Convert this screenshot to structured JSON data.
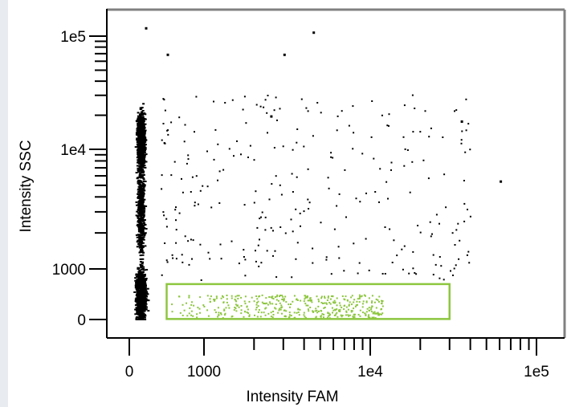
{
  "chart_data": {
    "type": "scatter",
    "title": "",
    "xlabel": "Intensity FAM",
    "ylabel": "Intensity SSC",
    "x_scale": "biexponential",
    "y_scale": "biexponential",
    "xlim": [
      -100,
      130000
    ],
    "ylim": [
      -100,
      150000
    ],
    "x_tick_labels": [
      {
        "value": 0,
        "label": "0"
      },
      {
        "value": 1000,
        "label": "1000"
      },
      {
        "value": 10000,
        "label": "1e4"
      },
      {
        "value": 100000,
        "label": "1e5"
      }
    ],
    "y_tick_labels": [
      {
        "value": 0,
        "label": "0"
      },
      {
        "value": 1000,
        "label": "1000"
      },
      {
        "value": 10000,
        "label": "1e4"
      },
      {
        "value": 100000,
        "label": "1e5"
      }
    ],
    "x_minor_ticks": [
      2000,
      3000,
      4000,
      5000,
      6000,
      7000,
      8000,
      9000,
      20000,
      30000,
      40000,
      50000,
      60000,
      70000,
      80000,
      90000
    ],
    "y_minor_ticks": [
      2000,
      3000,
      4000,
      5000,
      6000,
      7000,
      8000,
      9000,
      20000,
      30000,
      40000,
      50000,
      60000,
      70000,
      80000,
      90000
    ],
    "gate": {
      "x_range": [
        500,
        30000
      ],
      "y_range": [
        10,
        700
      ],
      "color": "#8dc63f"
    },
    "main_population": {
      "color": "#000000",
      "x_range": [
        -20,
        180
      ],
      "y_range": [
        0,
        60000
      ],
      "approx_count": 2500
    },
    "scattered_events": {
      "color": "#000000",
      "approx_count": 330
    },
    "gated_events": {
      "color": "#8dc63f",
      "x_range": [
        550,
        12000
      ],
      "y_range": [
        40,
        500
      ],
      "approx_count": 420
    },
    "outlier_points": [
      {
        "x": 210,
        "y": 120000
      },
      {
        "x": 4500,
        "y": 110000
      },
      {
        "x": 3000,
        "y": 70000
      },
      {
        "x": 35000,
        "y": 18000
      },
      {
        "x": 60000,
        "y": 5500
      },
      {
        "x": 500,
        "y": 70000
      },
      {
        "x": 2500,
        "y": 20000
      }
    ],
    "grid": false,
    "legend": "none",
    "colors": {
      "points": "#000000",
      "gate": "#8dc63f",
      "axes": "#000000",
      "frame_top_right": "#808080"
    }
  }
}
